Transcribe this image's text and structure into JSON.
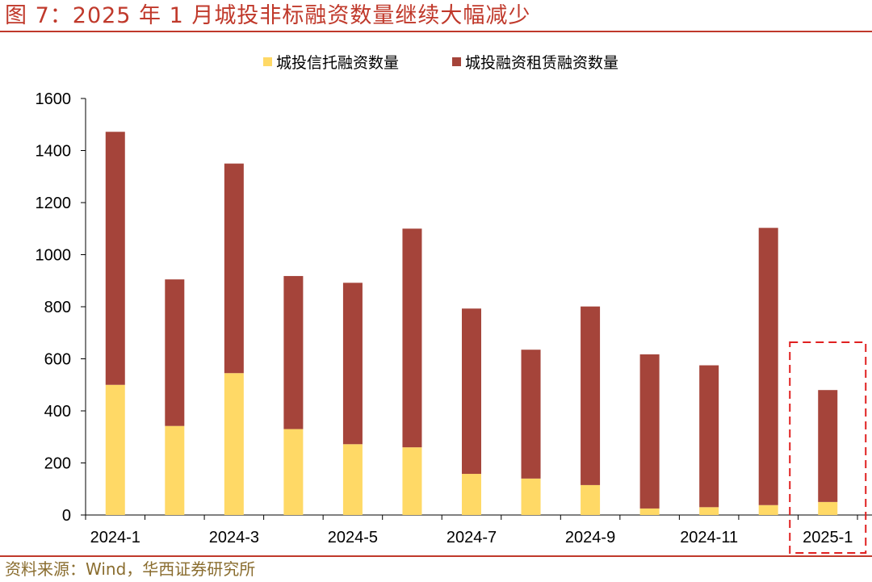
{
  "figure_title": "图 7：2025 年 1 月城投非标融资数量继续大幅减少",
  "source_note": "资料来源：Wind，华西证券研究所",
  "colors": {
    "accent": "#c0392b",
    "trust": "#ffd966",
    "leasing": "#a5443a",
    "highlight_box": "#e02020",
    "source_text": "#8a6d2f"
  },
  "chart_data": {
    "type": "bar",
    "stacked": true,
    "categories": [
      "2024-1",
      "2024-2",
      "2024-3",
      "2024-4",
      "2024-5",
      "2024-6",
      "2024-7",
      "2024-8",
      "2024-9",
      "2024-10",
      "2024-11",
      "2024-12",
      "2025-1"
    ],
    "tick_labels": [
      "2024-1",
      "",
      "2024-3",
      "",
      "2024-5",
      "",
      "2024-7",
      "",
      "2024-9",
      "",
      "2024-11",
      "",
      "2025-1"
    ],
    "series": [
      {
        "name": "城投信托融资数量",
        "color": "#ffd966",
        "values": [
          500,
          342,
          545,
          330,
          272,
          260,
          158,
          140,
          115,
          25,
          30,
          38,
          50
        ]
      },
      {
        "name": "城投融资租赁融资数量",
        "color": "#a5443a",
        "values": [
          972,
          563,
          805,
          588,
          620,
          840,
          635,
          495,
          686,
          592,
          545,
          1065,
          430
        ]
      }
    ],
    "ylim": [
      0,
      1600
    ],
    "yticks": [
      0,
      200,
      400,
      600,
      800,
      1000,
      1200,
      1400,
      1600
    ],
    "legend_position": "top",
    "grid": false,
    "highlight": {
      "category": "2025-1",
      "style": "dashed box"
    }
  }
}
